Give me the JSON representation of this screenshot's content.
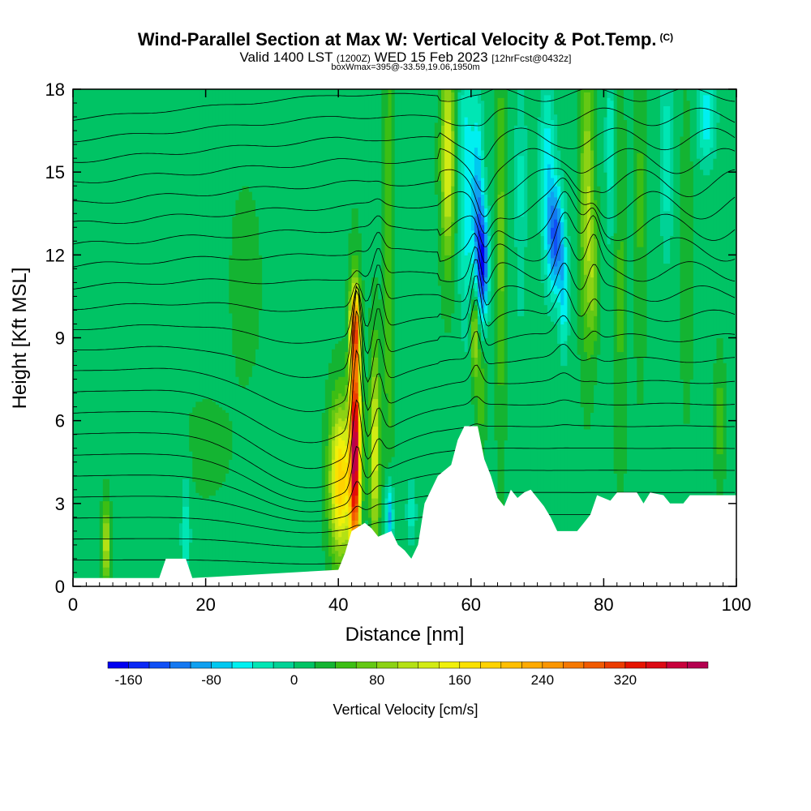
{
  "title": {
    "main": "Wind-Parallel Section at Max W: Vertical Velocity & Pot.Temp.",
    "copyright": "(C)",
    "valid_prefix": "Valid 1400 LST",
    "valid_utc": "(1200Z)",
    "valid_date": "WED 15 Feb 2023",
    "forecast": "[12hrFcst@0432z]",
    "box_info": "boxWmax=395@-33.59,19.06,1950m"
  },
  "chart_data": {
    "type": "heatmap",
    "xlabel": "Distance [nm]",
    "ylabel": "Height [Kft MSL]",
    "xlim": [
      0,
      100
    ],
    "ylim": [
      0,
      18
    ],
    "xticks": [
      0,
      20,
      40,
      60,
      80,
      100
    ],
    "xtick_labels": [
      "0",
      "20",
      "40",
      "60",
      "80",
      "100"
    ],
    "yticks": [
      0,
      3,
      6,
      9,
      12,
      15,
      18
    ],
    "ytick_labels": [
      "0",
      "3",
      "6",
      "9",
      "12",
      "15",
      "18"
    ],
    "background_value": 15,
    "terrain_profile": [
      [
        0,
        0.3
      ],
      [
        13,
        0.3
      ],
      [
        14,
        1
      ],
      [
        17,
        1
      ],
      [
        18,
        0.3
      ],
      [
        40,
        0.6
      ],
      [
        41,
        1.2
      ],
      [
        42,
        2
      ],
      [
        44,
        2.3
      ],
      [
        45,
        2.1
      ],
      [
        46,
        1.8
      ],
      [
        48,
        2
      ],
      [
        49,
        1.5
      ],
      [
        50,
        1.3
      ],
      [
        51,
        1
      ],
      [
        52,
        1.5
      ],
      [
        53,
        3
      ],
      [
        55,
        4
      ],
      [
        57,
        4.4
      ],
      [
        58,
        5.3
      ],
      [
        59,
        5.8
      ],
      [
        61,
        5.8
      ],
      [
        62,
        4.6
      ],
      [
        63,
        4
      ],
      [
        64,
        3.2
      ],
      [
        65,
        2.9
      ],
      [
        66,
        3.5
      ],
      [
        67,
        3.2
      ],
      [
        68,
        3.4
      ],
      [
        69,
        3.5
      ],
      [
        70,
        3.2
      ],
      [
        71,
        2.9
      ],
      [
        72,
        2.5
      ],
      [
        73,
        2
      ],
      [
        76,
        2
      ],
      [
        77,
        2.3
      ],
      [
        78,
        2.6
      ],
      [
        79,
        3.3
      ],
      [
        81,
        3.1
      ],
      [
        82,
        3.4
      ],
      [
        85,
        3.4
      ],
      [
        86,
        3
      ],
      [
        87,
        3.4
      ],
      [
        89,
        3.3
      ],
      [
        90,
        3
      ],
      [
        92,
        3
      ],
      [
        93,
        3.3
      ],
      [
        100,
        3.3
      ]
    ],
    "features": [
      {
        "x": 42.5,
        "y": 5.0,
        "sx": 0.55,
        "sy": 3.0,
        "value": 395
      },
      {
        "x": 40.3,
        "y": 3.8,
        "sx": 1.1,
        "sy": 1.9,
        "value": 195
      },
      {
        "x": 42.5,
        "y": 9.4,
        "sx": 0.5,
        "sy": 0.9,
        "value": 200
      },
      {
        "x": 45.5,
        "y": 5.0,
        "sx": 0.5,
        "sy": 2.5,
        "value": 140
      },
      {
        "x": 47.6,
        "y": 12.0,
        "sx": 0.5,
        "sy": 6.0,
        "value": 60
      },
      {
        "x": 47.7,
        "y": 2.5,
        "sx": 0.4,
        "sy": 1.0,
        "value": -95
      },
      {
        "x": 51.0,
        "y": 2.7,
        "sx": 0.5,
        "sy": 0.8,
        "value": -35
      },
      {
        "x": 56.5,
        "y": 15.5,
        "sx": 0.7,
        "sy": 2.5,
        "value": 145
      },
      {
        "x": 59.3,
        "y": 14.5,
        "sx": 0.8,
        "sy": 3.5,
        "value": -55
      },
      {
        "x": 61.8,
        "y": 11.7,
        "sx": 0.6,
        "sy": 1.4,
        "value": -140
      },
      {
        "x": 61.0,
        "y": 13.8,
        "sx": 0.6,
        "sy": 2.6,
        "value": -80
      },
      {
        "x": 60.6,
        "y": 9.2,
        "sx": 0.45,
        "sy": 1.2,
        "value": 115
      },
      {
        "x": 61.5,
        "y": 7.0,
        "sx": 0.5,
        "sy": 1.2,
        "value": 60
      },
      {
        "x": 64.5,
        "y": 12.5,
        "sx": 0.5,
        "sy": 4.5,
        "value": 70
      },
      {
        "x": 67.5,
        "y": 14.5,
        "sx": 0.6,
        "sy": 3.5,
        "value": -25
      },
      {
        "x": 72.8,
        "y": 12.6,
        "sx": 0.8,
        "sy": 1.4,
        "value": -120
      },
      {
        "x": 71.5,
        "y": 15.0,
        "sx": 0.8,
        "sy": 2.5,
        "value": -55
      },
      {
        "x": 74.0,
        "y": 10.5,
        "sx": 0.5,
        "sy": 1.5,
        "value": -55
      },
      {
        "x": 77.5,
        "y": 14.0,
        "sx": 0.7,
        "sy": 3.5,
        "value": 105
      },
      {
        "x": 78.5,
        "y": 11.0,
        "sx": 0.5,
        "sy": 1.5,
        "value": 70
      },
      {
        "x": 81.0,
        "y": 16.0,
        "sx": 0.5,
        "sy": 2.5,
        "value": -35
      },
      {
        "x": 82.5,
        "y": 10.5,
        "sx": 0.6,
        "sy": 4.5,
        "value": 45
      },
      {
        "x": 85.5,
        "y": 14.0,
        "sx": 0.6,
        "sy": 4.0,
        "value": 45
      },
      {
        "x": 89.5,
        "y": 15.5,
        "sx": 0.7,
        "sy": 2.5,
        "value": -35
      },
      {
        "x": 92.5,
        "y": 12.0,
        "sx": 0.6,
        "sy": 3.5,
        "value": 40
      },
      {
        "x": 95.5,
        "y": 17.0,
        "sx": 1.0,
        "sy": 1.2,
        "value": -55
      },
      {
        "x": 97.5,
        "y": 6.0,
        "sx": 0.5,
        "sy": 1.5,
        "value": 55
      },
      {
        "x": 5.0,
        "y": 1.5,
        "sx": 0.4,
        "sy": 1.0,
        "value": 120
      },
      {
        "x": 17.0,
        "y": 2.0,
        "sx": 0.5,
        "sy": 1.5,
        "value": -35
      },
      {
        "x": 26.0,
        "y": 11.0,
        "sx": 2.0,
        "sy": 3.0,
        "value": 25
      },
      {
        "x": 12.0,
        "y": 10.0,
        "sx": 2.0,
        "sy": 2.5,
        "value": 20
      },
      {
        "x": 20.0,
        "y": 5.0,
        "sx": 3.0,
        "sy": 1.5,
        "value": 25
      }
    ],
    "contour_heights": [
      1.0,
      1.8,
      2.6,
      3.4,
      4.2,
      5.0,
      5.8,
      6.6,
      7.4,
      8.2,
      9.0,
      9.8,
      10.6,
      11.4,
      12.2,
      13.0,
      13.8,
      14.6,
      15.4,
      16.2,
      17.0,
      17.8
    ],
    "colorbar": {
      "label": "Vertical Velocity [cm/s]",
      "bins": [
        -180,
        -160,
        -140,
        -120,
        -100,
        -80,
        -60,
        -40,
        -20,
        0,
        20,
        40,
        60,
        80,
        100,
        120,
        140,
        160,
        180,
        200,
        220,
        240,
        260,
        280,
        300,
        320,
        340,
        360,
        380,
        400
      ],
      "colors": [
        "#0000f0",
        "#0a28f5",
        "#1050f5",
        "#1478f0",
        "#10a0f0",
        "#00c8f0",
        "#00f0f0",
        "#00e6b4",
        "#00d296",
        "#00c364",
        "#14b432",
        "#3cbe14",
        "#64c814",
        "#8cd214",
        "#b4e114",
        "#d2eb14",
        "#f0f00a",
        "#fae100",
        "#ffd200",
        "#ffbe00",
        "#ffaa00",
        "#fa9600",
        "#f57800",
        "#f05a00",
        "#eb3c00",
        "#e61400",
        "#dc0a14",
        "#c8003c",
        "#b40050"
      ],
      "tick_values": [
        -160,
        -80,
        0,
        80,
        160,
        240,
        320
      ],
      "tick_labels": [
        "-160",
        "-80",
        "0",
        "80",
        "160",
        "240",
        "320"
      ]
    }
  }
}
